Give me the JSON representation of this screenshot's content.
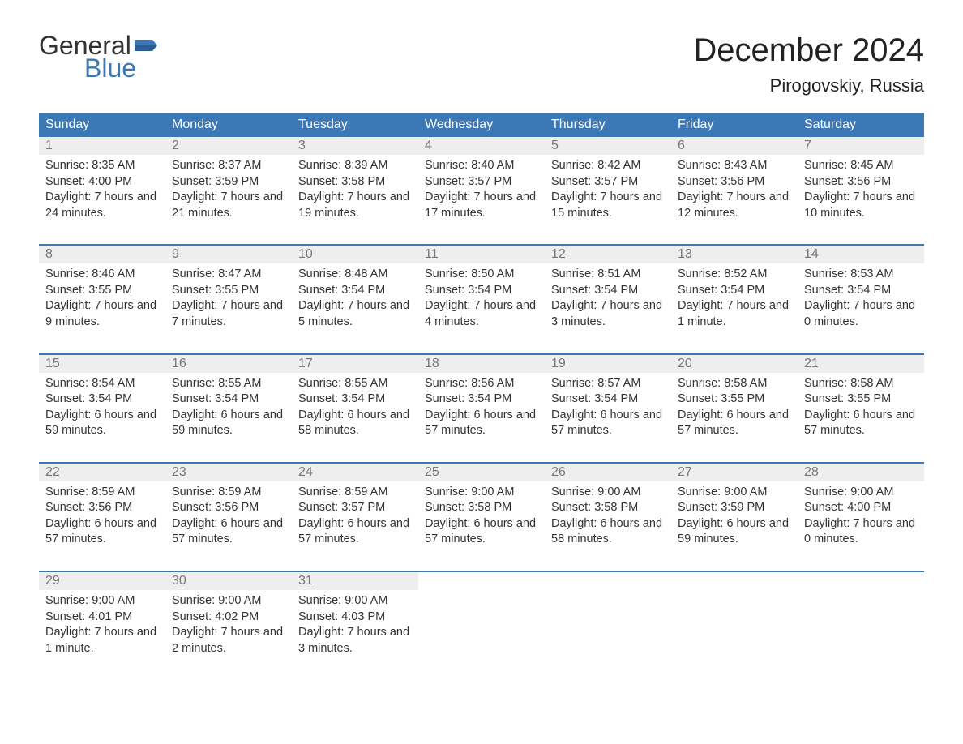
{
  "brand": {
    "word1": "General",
    "word2": "Blue",
    "text_color": "#333333",
    "accent_color": "#3b78b5"
  },
  "header": {
    "title": "December 2024",
    "location": "Pirogovskiy, Russia"
  },
  "calendar": {
    "header_bg": "#3b78b5",
    "header_fg": "#ffffff",
    "row_rule_color": "#3b78b5",
    "daynum_bg": "#eeeeee",
    "daynum_color": "#777777",
    "text_color": "#333333",
    "days_of_week": [
      "Sunday",
      "Monday",
      "Tuesday",
      "Wednesday",
      "Thursday",
      "Friday",
      "Saturday"
    ],
    "weeks": [
      [
        {
          "n": "1",
          "sunrise": "8:35 AM",
          "sunset": "4:00 PM",
          "daylight": "7 hours and 24 minutes."
        },
        {
          "n": "2",
          "sunrise": "8:37 AM",
          "sunset": "3:59 PM",
          "daylight": "7 hours and 21 minutes."
        },
        {
          "n": "3",
          "sunrise": "8:39 AM",
          "sunset": "3:58 PM",
          "daylight": "7 hours and 19 minutes."
        },
        {
          "n": "4",
          "sunrise": "8:40 AM",
          "sunset": "3:57 PM",
          "daylight": "7 hours and 17 minutes."
        },
        {
          "n": "5",
          "sunrise": "8:42 AM",
          "sunset": "3:57 PM",
          "daylight": "7 hours and 15 minutes."
        },
        {
          "n": "6",
          "sunrise": "8:43 AM",
          "sunset": "3:56 PM",
          "daylight": "7 hours and 12 minutes."
        },
        {
          "n": "7",
          "sunrise": "8:45 AM",
          "sunset": "3:56 PM",
          "daylight": "7 hours and 10 minutes."
        }
      ],
      [
        {
          "n": "8",
          "sunrise": "8:46 AM",
          "sunset": "3:55 PM",
          "daylight": "7 hours and 9 minutes."
        },
        {
          "n": "9",
          "sunrise": "8:47 AM",
          "sunset": "3:55 PM",
          "daylight": "7 hours and 7 minutes."
        },
        {
          "n": "10",
          "sunrise": "8:48 AM",
          "sunset": "3:54 PM",
          "daylight": "7 hours and 5 minutes."
        },
        {
          "n": "11",
          "sunrise": "8:50 AM",
          "sunset": "3:54 PM",
          "daylight": "7 hours and 4 minutes."
        },
        {
          "n": "12",
          "sunrise": "8:51 AM",
          "sunset": "3:54 PM",
          "daylight": "7 hours and 3 minutes."
        },
        {
          "n": "13",
          "sunrise": "8:52 AM",
          "sunset": "3:54 PM",
          "daylight": "7 hours and 1 minute."
        },
        {
          "n": "14",
          "sunrise": "8:53 AM",
          "sunset": "3:54 PM",
          "daylight": "7 hours and 0 minutes."
        }
      ],
      [
        {
          "n": "15",
          "sunrise": "8:54 AM",
          "sunset": "3:54 PM",
          "daylight": "6 hours and 59 minutes."
        },
        {
          "n": "16",
          "sunrise": "8:55 AM",
          "sunset": "3:54 PM",
          "daylight": "6 hours and 59 minutes."
        },
        {
          "n": "17",
          "sunrise": "8:55 AM",
          "sunset": "3:54 PM",
          "daylight": "6 hours and 58 minutes."
        },
        {
          "n": "18",
          "sunrise": "8:56 AM",
          "sunset": "3:54 PM",
          "daylight": "6 hours and 57 minutes."
        },
        {
          "n": "19",
          "sunrise": "8:57 AM",
          "sunset": "3:54 PM",
          "daylight": "6 hours and 57 minutes."
        },
        {
          "n": "20",
          "sunrise": "8:58 AM",
          "sunset": "3:55 PM",
          "daylight": "6 hours and 57 minutes."
        },
        {
          "n": "21",
          "sunrise": "8:58 AM",
          "sunset": "3:55 PM",
          "daylight": "6 hours and 57 minutes."
        }
      ],
      [
        {
          "n": "22",
          "sunrise": "8:59 AM",
          "sunset": "3:56 PM",
          "daylight": "6 hours and 57 minutes."
        },
        {
          "n": "23",
          "sunrise": "8:59 AM",
          "sunset": "3:56 PM",
          "daylight": "6 hours and 57 minutes."
        },
        {
          "n": "24",
          "sunrise": "8:59 AM",
          "sunset": "3:57 PM",
          "daylight": "6 hours and 57 minutes."
        },
        {
          "n": "25",
          "sunrise": "9:00 AM",
          "sunset": "3:58 PM",
          "daylight": "6 hours and 57 minutes."
        },
        {
          "n": "26",
          "sunrise": "9:00 AM",
          "sunset": "3:58 PM",
          "daylight": "6 hours and 58 minutes."
        },
        {
          "n": "27",
          "sunrise": "9:00 AM",
          "sunset": "3:59 PM",
          "daylight": "6 hours and 59 minutes."
        },
        {
          "n": "28",
          "sunrise": "9:00 AM",
          "sunset": "4:00 PM",
          "daylight": "7 hours and 0 minutes."
        }
      ],
      [
        {
          "n": "29",
          "sunrise": "9:00 AM",
          "sunset": "4:01 PM",
          "daylight": "7 hours and 1 minute."
        },
        {
          "n": "30",
          "sunrise": "9:00 AM",
          "sunset": "4:02 PM",
          "daylight": "7 hours and 2 minutes."
        },
        {
          "n": "31",
          "sunrise": "9:00 AM",
          "sunset": "4:03 PM",
          "daylight": "7 hours and 3 minutes."
        },
        null,
        null,
        null,
        null
      ]
    ],
    "labels": {
      "sunrise": "Sunrise:",
      "sunset": "Sunset:",
      "daylight": "Daylight:"
    }
  }
}
